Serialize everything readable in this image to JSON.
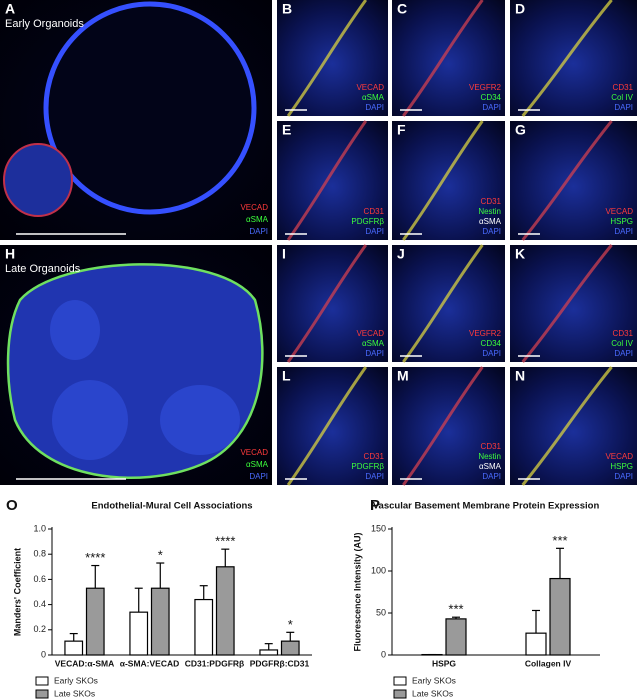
{
  "panels": [
    {
      "letter": "A",
      "label": "Early Organoids",
      "stains": [
        {
          "name": "VECAD",
          "color": "#ff3b3b"
        },
        {
          "name": "αSMA",
          "color": "#3cff3c"
        },
        {
          "name": "DAPI",
          "color": "#4a6bff"
        }
      ]
    },
    {
      "letter": "B",
      "stains": [
        {
          "name": "VECAD",
          "color": "#ff3b3b"
        },
        {
          "name": "αSMA",
          "color": "#3cff3c"
        },
        {
          "name": "DAPI",
          "color": "#4a6bff"
        }
      ]
    },
    {
      "letter": "C",
      "stains": [
        {
          "name": "VEGFR2",
          "color": "#ff3b3b"
        },
        {
          "name": "CD34",
          "color": "#3cff3c"
        },
        {
          "name": "DAPI",
          "color": "#4a6bff"
        }
      ]
    },
    {
      "letter": "D",
      "stains": [
        {
          "name": "CD31",
          "color": "#ff3b3b"
        },
        {
          "name": "Col IV",
          "color": "#3cff3c"
        },
        {
          "name": "DAPI",
          "color": "#4a6bff"
        }
      ]
    },
    {
      "letter": "E",
      "stains": [
        {
          "name": "CD31",
          "color": "#ff3b3b"
        },
        {
          "name": "PDGFRβ",
          "color": "#3cff3c"
        },
        {
          "name": "DAPI",
          "color": "#4a6bff"
        }
      ]
    },
    {
      "letter": "F",
      "stains": [
        {
          "name": "CD31",
          "color": "#ff3b3b"
        },
        {
          "name": "Nestin",
          "color": "#3cff3c"
        },
        {
          "name": "αSMA",
          "color": "#ffffff"
        },
        {
          "name": "DAPI",
          "color": "#4a6bff"
        }
      ]
    },
    {
      "letter": "G",
      "stains": [
        {
          "name": "VECAD",
          "color": "#ff3b3b"
        },
        {
          "name": "HSPG",
          "color": "#3cff3c"
        },
        {
          "name": "DAPI",
          "color": "#4a6bff"
        }
      ]
    },
    {
      "letter": "H",
      "label": "Late Organoids",
      "stains": [
        {
          "name": "VECAD",
          "color": "#ff3b3b"
        },
        {
          "name": "αSMA",
          "color": "#3cff3c"
        },
        {
          "name": "DAPI",
          "color": "#4a6bff"
        }
      ]
    },
    {
      "letter": "I",
      "stains": [
        {
          "name": "VECAD",
          "color": "#ff3b3b"
        },
        {
          "name": "αSMA",
          "color": "#3cff3c"
        },
        {
          "name": "DAPI",
          "color": "#4a6bff"
        }
      ]
    },
    {
      "letter": "J",
      "stains": [
        {
          "name": "VEGFR2",
          "color": "#ff3b3b"
        },
        {
          "name": "CD34",
          "color": "#3cff3c"
        },
        {
          "name": "DAPI",
          "color": "#4a6bff"
        }
      ]
    },
    {
      "letter": "K",
      "stains": [
        {
          "name": "CD31",
          "color": "#ff3b3b"
        },
        {
          "name": "Col IV",
          "color": "#3cff3c"
        },
        {
          "name": "DAPI",
          "color": "#4a6bff"
        }
      ]
    },
    {
      "letter": "L",
      "stains": [
        {
          "name": "CD31",
          "color": "#ff3b3b"
        },
        {
          "name": "PDGFRβ",
          "color": "#3cff3c"
        },
        {
          "name": "DAPI",
          "color": "#4a6bff"
        }
      ]
    },
    {
      "letter": "M",
      "stains": [
        {
          "name": "CD31",
          "color": "#ff3b3b"
        },
        {
          "name": "Nestin",
          "color": "#3cff3c"
        },
        {
          "name": "αSMA",
          "color": "#ffffff"
        },
        {
          "name": "DAPI",
          "color": "#4a6bff"
        }
      ]
    },
    {
      "letter": "N",
      "stains": [
        {
          "name": "VECAD",
          "color": "#ff3b3b"
        },
        {
          "name": "HSPG",
          "color": "#3cff3c"
        },
        {
          "name": "DAPI",
          "color": "#4a6bff"
        }
      ]
    }
  ],
  "chart_data": [
    {
      "type": "bar",
      "letter": "O",
      "title": "Endothelial-Mural Cell Associations",
      "ylabel": "Manders' Coefficient",
      "categories": [
        "VECAD:α-SMA",
        "α-SMA:VECAD",
        "CD31:PDGFRβ",
        "PDGFRβ:CD31"
      ],
      "series": [
        {
          "name": "Early SKOs",
          "color": "#ffffff",
          "values": [
            0.11,
            0.34,
            0.44,
            0.04
          ],
          "errors": [
            0.06,
            0.19,
            0.11,
            0.05
          ]
        },
        {
          "name": "Late SKOs",
          "color": "#9a9a9a",
          "values": [
            0.53,
            0.53,
            0.7,
            0.11
          ],
          "errors": [
            0.18,
            0.2,
            0.14,
            0.07
          ]
        }
      ],
      "significance": [
        "****",
        "*",
        "****",
        "*"
      ],
      "ylim": [
        0,
        1
      ],
      "yticks": [
        0,
        0.2,
        0.4,
        0.6,
        0.8,
        {
          "value": 1,
          "label": "1.0"
        }
      ]
    },
    {
      "type": "bar",
      "letter": "P",
      "title": "Vascular Basement Membrane Protein Expression",
      "ylabel": "Fluorescence Intensity (AU)",
      "categories": [
        "HSPG",
        "Collagen IV"
      ],
      "series": [
        {
          "name": "Early SKOs",
          "color": "#ffffff",
          "values": [
            0.5,
            26
          ],
          "errors": [
            0,
            27
          ]
        },
        {
          "name": "Late SKOs",
          "color": "#9a9a9a",
          "values": [
            43,
            91
          ],
          "errors": [
            2,
            36
          ]
        }
      ],
      "significance": [
        "***",
        "***"
      ],
      "ylim": [
        0,
        150
      ],
      "yticks": [
        0,
        50,
        100,
        150
      ]
    }
  ]
}
